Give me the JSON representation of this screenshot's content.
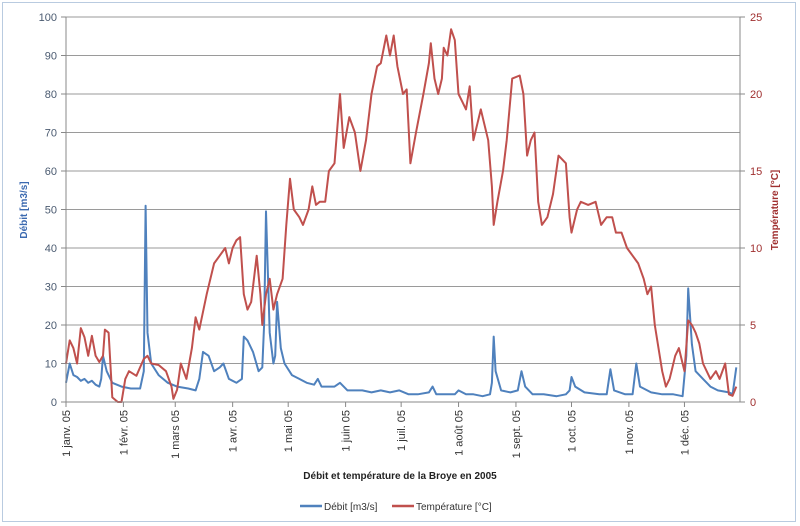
{
  "chart_data": {
    "type": "line",
    "title": "Débit et température de la Broye en  2005",
    "xlabel": "",
    "ylabel": "Débit [m3/s]",
    "y2label": "Température [°C]",
    "ylim": [
      0,
      100
    ],
    "y2lim": [
      0,
      25
    ],
    "yticks": [
      "0",
      "10",
      "20",
      "30",
      "40",
      "50",
      "60",
      "70",
      "80",
      "90",
      "100"
    ],
    "y2ticks": [
      "0",
      "5",
      "10",
      "15",
      "20",
      "25"
    ],
    "xlim_days": [
      0,
      364
    ],
    "xticks": [
      {
        "day": 0,
        "label": "1 janv. 05"
      },
      {
        "day": 31,
        "label": "1 févr. 05"
      },
      {
        "day": 59,
        "label": "1 mars 05"
      },
      {
        "day": 90,
        "label": "1 avr. 05"
      },
      {
        "day": 120,
        "label": "1 mai 05"
      },
      {
        "day": 151,
        "label": "1 juin 05"
      },
      {
        "day": 181,
        "label": "1 juil. 05"
      },
      {
        "day": 212,
        "label": "1 août 05"
      },
      {
        "day": 243,
        "label": "1 sept. 05"
      },
      {
        "day": 273,
        "label": "1 oct. 05"
      },
      {
        "day": 304,
        "label": "1 nov. 05"
      },
      {
        "day": 334,
        "label": "1 déc. 05"
      }
    ],
    "grid": true,
    "legend_position": "bottom",
    "series": [
      {
        "name": "Débit [m3/s]",
        "axis": "left",
        "color": "#4f81bd",
        "points": [
          [
            0,
            5
          ],
          [
            2,
            10
          ],
          [
            4,
            7
          ],
          [
            6,
            6.5
          ],
          [
            8,
            5.5
          ],
          [
            10,
            6
          ],
          [
            12,
            5
          ],
          [
            14,
            5.5
          ],
          [
            16,
            4.5
          ],
          [
            18,
            4
          ],
          [
            19,
            6
          ],
          [
            20,
            12
          ],
          [
            22,
            8
          ],
          [
            25,
            5
          ],
          [
            30,
            4
          ],
          [
            35,
            3.5
          ],
          [
            40,
            3.5
          ],
          [
            42,
            8
          ],
          [
            43,
            51
          ],
          [
            44,
            18
          ],
          [
            46,
            10
          ],
          [
            50,
            7
          ],
          [
            55,
            5
          ],
          [
            60,
            4
          ],
          [
            66,
            3.5
          ],
          [
            70,
            3
          ],
          [
            72,
            6
          ],
          [
            74,
            13
          ],
          [
            77,
            12
          ],
          [
            80,
            8
          ],
          [
            83,
            9
          ],
          [
            85,
            10
          ],
          [
            88,
            6
          ],
          [
            92,
            5
          ],
          [
            95,
            6
          ],
          [
            96,
            17
          ],
          [
            98,
            16
          ],
          [
            101,
            13
          ],
          [
            104,
            8
          ],
          [
            106,
            9
          ],
          [
            107,
            20
          ],
          [
            108,
            49.5
          ],
          [
            110,
            18
          ],
          [
            112,
            10
          ],
          [
            113,
            12
          ],
          [
            114,
            26
          ],
          [
            116,
            14
          ],
          [
            118,
            10
          ],
          [
            122,
            7
          ],
          [
            126,
            6
          ],
          [
            130,
            5
          ],
          [
            134,
            4.5
          ],
          [
            136,
            6
          ],
          [
            138,
            4
          ],
          [
            145,
            4
          ],
          [
            148,
            5
          ],
          [
            152,
            3
          ],
          [
            160,
            3
          ],
          [
            165,
            2.5
          ],
          [
            170,
            3
          ],
          [
            175,
            2.5
          ],
          [
            180,
            3
          ],
          [
            185,
            2
          ],
          [
            190,
            2
          ],
          [
            196,
            2.5
          ],
          [
            198,
            4
          ],
          [
            200,
            2
          ],
          [
            205,
            2
          ],
          [
            210,
            2
          ],
          [
            212,
            3
          ],
          [
            216,
            2
          ],
          [
            220,
            2
          ],
          [
            225,
            1.5
          ],
          [
            229,
            2
          ],
          [
            230,
            5
          ],
          [
            231,
            17
          ],
          [
            232,
            8
          ],
          [
            235,
            3
          ],
          [
            240,
            2.5
          ],
          [
            244,
            3
          ],
          [
            246,
            8
          ],
          [
            248,
            4
          ],
          [
            252,
            2
          ],
          [
            258,
            2
          ],
          [
            265,
            1.5
          ],
          [
            270,
            2
          ],
          [
            272,
            3
          ],
          [
            273,
            6.5
          ],
          [
            275,
            4
          ],
          [
            280,
            2.5
          ],
          [
            288,
            2
          ],
          [
            292,
            2
          ],
          [
            294,
            8.5
          ],
          [
            296,
            3
          ],
          [
            302,
            2
          ],
          [
            306,
            2
          ],
          [
            308,
            10
          ],
          [
            310,
            4
          ],
          [
            316,
            2.5
          ],
          [
            322,
            2
          ],
          [
            328,
            2
          ],
          [
            333,
            1.5
          ],
          [
            335,
            12
          ],
          [
            336,
            29.5
          ],
          [
            338,
            15
          ],
          [
            340,
            8
          ],
          [
            344,
            6
          ],
          [
            348,
            4
          ],
          [
            352,
            3
          ],
          [
            358,
            2.5
          ],
          [
            360,
            2
          ],
          [
            362,
            9
          ]
        ]
      },
      {
        "name": "Température [°C]",
        "axis": "right",
        "color": "#c0504d",
        "points": [
          [
            0,
            2.5
          ],
          [
            2,
            4
          ],
          [
            4,
            3.5
          ],
          [
            6,
            2.5
          ],
          [
            8,
            4.8
          ],
          [
            10,
            4.2
          ],
          [
            12,
            3
          ],
          [
            14,
            4.3
          ],
          [
            16,
            3
          ],
          [
            18,
            2.6
          ],
          [
            20,
            3
          ],
          [
            21,
            4.7
          ],
          [
            23,
            4.5
          ],
          [
            25,
            0.3
          ],
          [
            28,
            0
          ],
          [
            30,
            0
          ],
          [
            32,
            1.5
          ],
          [
            34,
            2
          ],
          [
            38,
            1.7
          ],
          [
            42,
            2.8
          ],
          [
            44,
            3
          ],
          [
            46,
            2.5
          ],
          [
            50,
            2.4
          ],
          [
            54,
            2
          ],
          [
            57,
            1
          ],
          [
            58,
            0.2
          ],
          [
            60,
            0.8
          ],
          [
            62,
            2.5
          ],
          [
            65,
            1.5
          ],
          [
            68,
            3.5
          ],
          [
            70,
            5.5
          ],
          [
            72,
            4.7
          ],
          [
            76,
            7
          ],
          [
            80,
            9
          ],
          [
            83,
            9.5
          ],
          [
            86,
            10
          ],
          [
            88,
            9
          ],
          [
            90,
            10
          ],
          [
            92,
            10.5
          ],
          [
            94,
            10.7
          ],
          [
            96,
            7
          ],
          [
            98,
            6
          ],
          [
            100,
            6.5
          ],
          [
            103,
            9.5
          ],
          [
            105,
            7
          ],
          [
            106,
            5
          ],
          [
            108,
            7
          ],
          [
            110,
            8
          ],
          [
            112,
            6
          ],
          [
            114,
            7
          ],
          [
            117,
            8
          ],
          [
            119,
            11.5
          ],
          [
            121,
            14.5
          ],
          [
            123,
            12.5
          ],
          [
            126,
            12
          ],
          [
            128,
            11.5
          ],
          [
            131,
            12.5
          ],
          [
            133,
            14
          ],
          [
            135,
            12.8
          ],
          [
            137,
            13
          ],
          [
            140,
            13
          ],
          [
            142,
            15
          ],
          [
            145,
            15.5
          ],
          [
            148,
            20
          ],
          [
            150,
            16.5
          ],
          [
            153,
            18.5
          ],
          [
            156,
            17.5
          ],
          [
            159,
            15
          ],
          [
            162,
            17
          ],
          [
            165,
            20
          ],
          [
            168,
            21.8
          ],
          [
            170,
            22
          ],
          [
            173,
            23.8
          ],
          [
            175,
            22.5
          ],
          [
            177,
            23.8
          ],
          [
            179,
            21.8
          ],
          [
            182,
            20
          ],
          [
            184,
            20.3
          ],
          [
            186,
            15.5
          ],
          [
            189,
            17.5
          ],
          [
            193,
            20
          ],
          [
            196,
            22
          ],
          [
            197,
            23.3
          ],
          [
            199,
            21
          ],
          [
            201,
            20
          ],
          [
            203,
            21
          ],
          [
            204,
            23
          ],
          [
            206,
            22.5
          ],
          [
            208,
            24.2
          ],
          [
            210,
            23.5
          ],
          [
            212,
            20
          ],
          [
            214,
            19.5
          ],
          [
            216,
            19
          ],
          [
            218,
            20.5
          ],
          [
            220,
            17
          ],
          [
            222,
            18
          ],
          [
            224,
            19
          ],
          [
            226,
            18
          ],
          [
            228,
            17
          ],
          [
            230,
            14
          ],
          [
            231,
            11.5
          ],
          [
            233,
            13
          ],
          [
            236,
            15
          ],
          [
            238,
            17
          ],
          [
            241,
            21
          ],
          [
            245,
            21.2
          ],
          [
            247,
            20
          ],
          [
            249,
            16
          ],
          [
            251,
            17
          ],
          [
            253,
            17.5
          ],
          [
            255,
            13
          ],
          [
            257,
            11.5
          ],
          [
            260,
            12
          ],
          [
            263,
            13.5
          ],
          [
            266,
            16
          ],
          [
            270,
            15.5
          ],
          [
            272,
            12
          ],
          [
            273,
            11
          ],
          [
            276,
            12.5
          ],
          [
            278,
            13
          ],
          [
            282,
            12.8
          ],
          [
            286,
            13
          ],
          [
            289,
            11.5
          ],
          [
            292,
            12
          ],
          [
            295,
            12
          ],
          [
            297,
            11
          ],
          [
            300,
            11
          ],
          [
            303,
            10
          ],
          [
            306,
            9.5
          ],
          [
            309,
            9
          ],
          [
            312,
            8
          ],
          [
            314,
            7
          ],
          [
            316,
            7.5
          ],
          [
            318,
            5
          ],
          [
            320,
            3.5
          ],
          [
            322,
            2
          ],
          [
            324,
            1
          ],
          [
            326,
            1.5
          ],
          [
            327,
            2
          ],
          [
            329,
            3
          ],
          [
            331,
            3.5
          ],
          [
            333,
            2.5
          ],
          [
            334,
            2
          ],
          [
            336,
            5.3
          ],
          [
            338,
            5
          ],
          [
            340,
            4.5
          ],
          [
            342,
            3.8
          ],
          [
            344,
            2.5
          ],
          [
            346,
            2
          ],
          [
            348,
            1.5
          ],
          [
            351,
            2
          ],
          [
            353,
            1.5
          ],
          [
            356,
            2.5
          ],
          [
            358,
            0.5
          ],
          [
            360,
            0.4
          ],
          [
            362,
            1
          ]
        ]
      }
    ]
  }
}
